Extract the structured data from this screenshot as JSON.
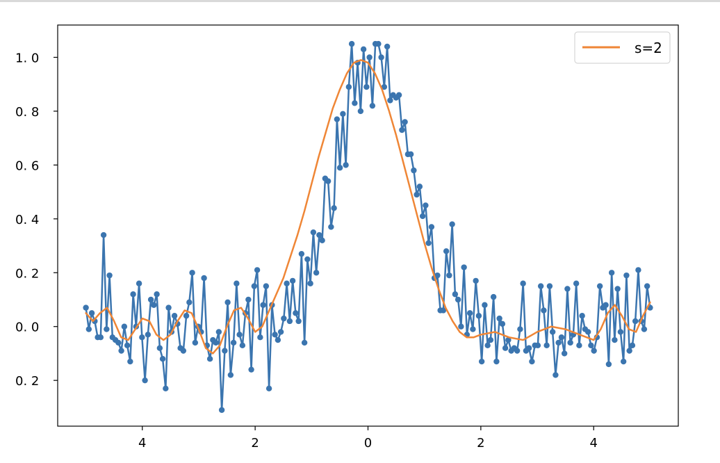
{
  "chart_data": {
    "type": "line",
    "title": "",
    "xlabel": "",
    "ylabel": "",
    "xlim": [
      -5.5,
      5.5
    ],
    "ylim": [
      -0.37,
      1.12
    ],
    "x_ticks": [
      {
        "value": -4,
        "label": "4"
      },
      {
        "value": -2,
        "label": "2"
      },
      {
        "value": 0,
        "label": "0"
      },
      {
        "value": 2,
        "label": "2"
      },
      {
        "value": 4,
        "label": "4"
      }
    ],
    "y_ticks": [
      {
        "value": -0.2,
        "label": "0. 2"
      },
      {
        "value": 0.0,
        "label": "0. 0"
      },
      {
        "value": 0.2,
        "label": "0. 2"
      },
      {
        "value": 0.4,
        "label": "0. 4"
      },
      {
        "value": 0.6,
        "label": "0. 6"
      },
      {
        "value": 0.8,
        "label": "0. 8"
      },
      {
        "value": 1.0,
        "label": "1. 0"
      }
    ],
    "grid": false,
    "legend": {
      "position": "top-right",
      "entries": [
        "s=2"
      ]
    },
    "colors": {
      "noisy": "#3b75af",
      "smooth": "#ef8636"
    },
    "series": [
      {
        "x_start": -5,
        "x_end": 5,
        "style": "line-markers",
        "y": [
          0.07,
          -0.01,
          0.05,
          0.02,
          -0.04,
          -0.04,
          0.34,
          -0.01,
          0.19,
          -0.04,
          -0.05,
          -0.06,
          -0.09,
          0.0,
          -0.07,
          -0.13,
          0.12,
          0.0,
          0.16,
          -0.04,
          -0.2,
          -0.03,
          0.1,
          0.08,
          0.12,
          -0.08,
          -0.12,
          -0.23,
          0.07,
          -0.02,
          0.04,
          0.01,
          -0.08,
          -0.09,
          0.04,
          0.09,
          0.2,
          -0.06,
          0.0,
          -0.02,
          0.18,
          -0.07,
          -0.12,
          -0.05,
          -0.06,
          -0.02,
          -0.31,
          -0.09,
          0.09,
          -0.18,
          -0.06,
          0.16,
          -0.03,
          -0.07,
          0.05,
          0.1,
          -0.16,
          0.15,
          0.21,
          -0.04,
          0.08,
          0.15,
          -0.23,
          0.08,
          -0.03,
          -0.05,
          -0.02,
          0.03,
          0.16,
          0.02,
          0.17,
          0.05,
          0.02,
          0.27,
          -0.06,
          0.25,
          0.16,
          0.35,
          0.2,
          0.34,
          0.32,
          0.55,
          0.54,
          0.37,
          0.44,
          0.77,
          0.59,
          0.79,
          0.6,
          0.89,
          1.05,
          0.83,
          0.98,
          0.8,
          1.03,
          0.89,
          1.0,
          0.82,
          1.05,
          1.05,
          1.0,
          0.89,
          1.04,
          0.84,
          0.86,
          0.85,
          0.86,
          0.73,
          0.76,
          0.64,
          0.64,
          0.58,
          0.49,
          0.52,
          0.41,
          0.45,
          0.31,
          0.37,
          0.18,
          0.19,
          0.06,
          0.06,
          0.28,
          0.19,
          0.38,
          0.12,
          0.1,
          0.0,
          0.22,
          -0.03,
          0.05,
          -0.01,
          0.17,
          0.04,
          -0.13,
          0.08,
          -0.07,
          -0.05,
          0.11,
          -0.13,
          0.03,
          0.01,
          -0.08,
          -0.05,
          -0.09,
          -0.08,
          -0.09,
          -0.01,
          0.16,
          -0.09,
          -0.08,
          -0.13,
          -0.07,
          -0.07,
          0.15,
          0.06,
          -0.07,
          0.15,
          -0.02,
          -0.18,
          -0.06,
          -0.04,
          -0.1,
          0.14,
          -0.06,
          -0.03,
          0.16,
          -0.07,
          0.04,
          -0.01,
          -0.02,
          -0.07,
          -0.09,
          -0.04,
          0.15,
          0.07,
          0.08,
          -0.14,
          0.2,
          -0.05,
          0.14,
          -0.02,
          -0.13,
          0.19,
          -0.09,
          -0.07,
          0.02,
          0.21,
          0.02,
          -0.01,
          0.15,
          0.07
        ]
      },
      {
        "name": "s=2",
        "x_start": -5,
        "x_end": 5,
        "style": "line",
        "x": [
          -5.0,
          -4.875,
          -4.75,
          -4.625,
          -4.5,
          -4.375,
          -4.25,
          -4.125,
          -4.0,
          -3.875,
          -3.75,
          -3.625,
          -3.5,
          -3.375,
          -3.25,
          -3.125,
          -3.0,
          -2.875,
          -2.75,
          -2.625,
          -2.5,
          -2.375,
          -2.25,
          -2.125,
          -2.0,
          -1.875,
          -1.75,
          -1.625,
          -1.5,
          -1.375,
          -1.25,
          -1.125,
          -1.0,
          -0.875,
          -0.75,
          -0.625,
          -0.5,
          -0.375,
          -0.25,
          -0.125,
          0.0,
          0.125,
          0.25,
          0.375,
          0.5,
          0.625,
          0.75,
          0.875,
          1.0,
          1.125,
          1.25,
          1.375,
          1.5,
          1.625,
          1.75,
          1.875,
          2.0,
          2.25,
          2.5,
          2.75,
          3.0,
          3.25,
          3.5,
          3.75,
          4.0,
          4.125,
          4.25,
          4.375,
          4.5,
          4.625,
          4.75,
          4.875,
          5.0
        ],
        "y": [
          0.05,
          0.02,
          0.05,
          0.07,
          0.02,
          -0.04,
          -0.05,
          -0.01,
          0.03,
          0.02,
          -0.03,
          -0.05,
          -0.03,
          0.02,
          0.06,
          0.05,
          -0.01,
          -0.08,
          -0.1,
          -0.07,
          0.0,
          0.06,
          0.07,
          0.03,
          -0.02,
          0.0,
          0.06,
          0.12,
          0.18,
          0.26,
          0.34,
          0.43,
          0.53,
          0.63,
          0.72,
          0.81,
          0.88,
          0.94,
          0.98,
          0.99,
          0.98,
          0.94,
          0.88,
          0.8,
          0.71,
          0.61,
          0.51,
          0.41,
          0.31,
          0.22,
          0.14,
          0.07,
          0.02,
          -0.02,
          -0.04,
          -0.04,
          -0.03,
          -0.02,
          -0.04,
          -0.05,
          -0.02,
          0.0,
          -0.01,
          -0.03,
          -0.05,
          -0.01,
          0.05,
          0.08,
          0.04,
          -0.01,
          -0.02,
          0.04,
          0.09
        ]
      }
    ]
  }
}
